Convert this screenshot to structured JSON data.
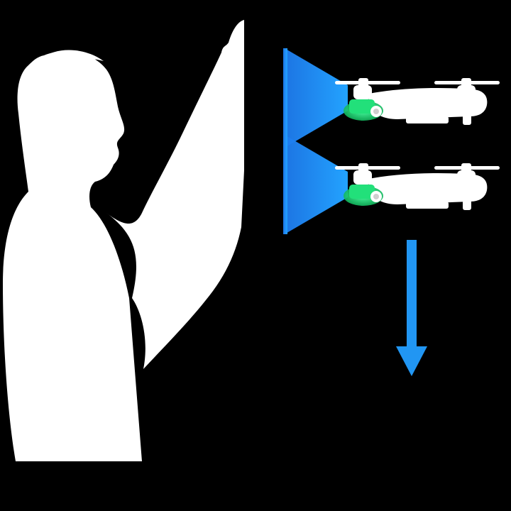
{
  "illustration": {
    "background_color": "#000000",
    "figure_color": "#FFFFFF",
    "sensor_beam_color": "#1E90FF",
    "drone_sensor_color": "#22E07A",
    "arrow_color": "#2196F3",
    "elements": [
      "person-silhouette-icon",
      "raised-arm-icon",
      "drone-icon",
      "sensor-beam",
      "down-arrow-icon"
    ],
    "drone_count": 2
  }
}
